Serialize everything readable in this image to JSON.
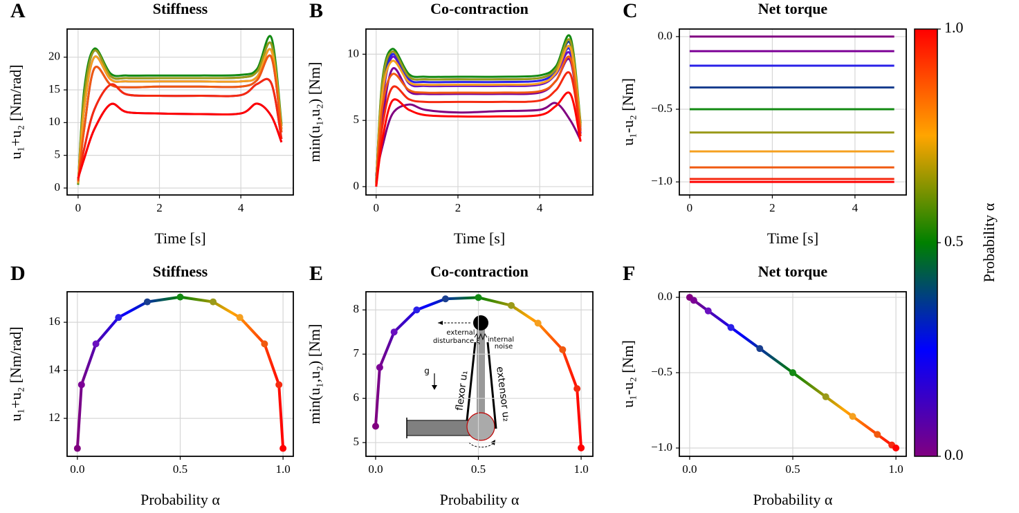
{
  "chart_data": [
    {
      "type": "line",
      "panel_label": "A",
      "title": "Stiffness",
      "xlabel": "Time [s]",
      "ylabel": "u₁+u₂ [Nm/rad]",
      "xlim": [
        -0.27,
        5.29
      ],
      "ylim": [
        -1.06,
        24.3
      ],
      "xticks": [
        0,
        2,
        4
      ],
      "yticks": [
        0,
        5,
        10,
        15,
        20
      ],
      "grid": true,
      "smooth": true,
      "x": [
        0,
        0.15,
        0.4,
        0.8,
        1.2,
        2,
        3,
        4,
        4.4,
        4.75,
        5
      ],
      "series": [
        {
          "color": "#800080",
          "values": [
            1.5,
            4.5,
            9,
            12.8,
            11.6,
            11.4,
            11.3,
            11.4,
            12.9,
            11,
            7
          ]
        },
        {
          "color": "#7c0096",
          "values": [
            1.2,
            6,
            12,
            15.8,
            14.3,
            14.1,
            14.1,
            14.2,
            15.9,
            16,
            7.5
          ]
        },
        {
          "color": "#6a10c0",
          "values": [
            1,
            9,
            18.3,
            15.8,
            15.4,
            15.5,
            15.5,
            15.5,
            16.5,
            20,
            8.5
          ]
        },
        {
          "color": "#2a20e8",
          "values": [
            0.8,
            12,
            20,
            16.6,
            16.3,
            16.3,
            16.3,
            16.3,
            17,
            21,
            9
          ]
        },
        {
          "color": "#1a3f8f",
          "values": [
            0.6,
            14,
            21,
            17.1,
            16.8,
            16.8,
            16.8,
            16.9,
            17.8,
            22,
            9.5
          ]
        },
        {
          "color": "#138a13",
          "values": [
            0.5,
            15,
            21.3,
            17.5,
            17.2,
            17.2,
            17.2,
            17.3,
            18.2,
            23,
            9.8
          ]
        },
        {
          "color": "#9a9a1a",
          "values": [
            0.6,
            14,
            21,
            17.1,
            16.8,
            16.8,
            16.8,
            16.9,
            17.8,
            22,
            9.5
          ]
        },
        {
          "color": "#f5a020",
          "values": [
            0.8,
            12,
            20,
            16.6,
            16.3,
            16.3,
            16.3,
            16.3,
            17,
            21,
            9
          ]
        },
        {
          "color": "#f05a10",
          "values": [
            1,
            9,
            18.3,
            15.8,
            15.4,
            15.5,
            15.5,
            15.5,
            16.5,
            20,
            8.5
          ]
        },
        {
          "color": "#f52a10",
          "values": [
            1.2,
            6,
            12,
            15.8,
            14.3,
            14.1,
            14.1,
            14.2,
            15.9,
            16,
            7.5
          ]
        },
        {
          "color": "#ff0000",
          "values": [
            1.5,
            4.5,
            9,
            12.8,
            11.6,
            11.4,
            11.3,
            11.4,
            12.9,
            11,
            7
          ]
        }
      ]
    },
    {
      "type": "line",
      "panel_label": "B",
      "title": "Co-contraction",
      "xlabel": "Time [s]",
      "ylabel": "min(u₁,u₂) [Nm]",
      "xlim": [
        -0.25,
        5.3
      ],
      "ylim": [
        -0.63,
        11.9
      ],
      "xticks": [
        0,
        2,
        4
      ],
      "yticks": [
        0,
        5,
        10
      ],
      "grid": true,
      "smooth": true,
      "x": [
        0,
        0.15,
        0.4,
        0.8,
        1.2,
        2,
        3,
        4,
        4.4,
        4.75,
        5
      ],
      "series": [
        {
          "color": "#800080",
          "values": [
            0.9,
            3,
            5.5,
            6.2,
            5.8,
            5.6,
            5.7,
            5.8,
            6.3,
            5,
            3.5
          ]
        },
        {
          "color": "#7c0096",
          "values": [
            0.8,
            5,
            8.9,
            7.2,
            7,
            7,
            7,
            7.1,
            8,
            9.5,
            4
          ]
        },
        {
          "color": "#6a10c0",
          "values": [
            0.6,
            6.5,
            9.8,
            7.8,
            7.6,
            7.6,
            7.6,
            7.7,
            8.5,
            10,
            4.3
          ]
        },
        {
          "color": "#2a20e8",
          "values": [
            0.5,
            7,
            10,
            8.1,
            7.9,
            7.9,
            7.9,
            8,
            8.7,
            10.3,
            4.5
          ]
        },
        {
          "color": "#1a3f8f",
          "values": [
            0.4,
            7.5,
            10.2,
            8.3,
            8.1,
            8.1,
            8.1,
            8.2,
            8.9,
            10.8,
            4.6
          ]
        },
        {
          "color": "#138a13",
          "values": [
            0.3,
            8,
            10.4,
            8.5,
            8.3,
            8.3,
            8.3,
            8.4,
            9.1,
            11.3,
            4.8
          ]
        },
        {
          "color": "#9a9a1a",
          "values": [
            0.3,
            7.8,
            10.2,
            8.3,
            8.1,
            8.1,
            8.1,
            8.2,
            8.9,
            11,
            4.7
          ]
        },
        {
          "color": "#f5a020",
          "values": [
            0.2,
            7,
            9.5,
            7.9,
            7.7,
            7.7,
            7.7,
            7.8,
            8.6,
            10.5,
            4.5
          ]
        },
        {
          "color": "#f05a10",
          "values": [
            0.1,
            6,
            8.5,
            7.3,
            7.1,
            7.1,
            7.1,
            7.2,
            8,
            9.7,
            4.2
          ]
        },
        {
          "color": "#f52a10",
          "values": [
            0,
            4.5,
            7.5,
            6.6,
            6.4,
            6.4,
            6.4,
            6.5,
            7.3,
            8.5,
            3.8
          ]
        },
        {
          "color": "#ff0000",
          "values": [
            0,
            3.5,
            6.5,
            5.8,
            5.4,
            5.3,
            5.3,
            5.4,
            6.1,
            7,
            3.4
          ]
        }
      ]
    },
    {
      "type": "line",
      "panel_label": "C",
      "title": "Net torque",
      "xlabel": "Time [s]",
      "ylabel": "u₁-u₂ [Nm]",
      "xlim": [
        -0.25,
        5.24
      ],
      "ylim": [
        -1.09,
        0.052
      ],
      "xticks": [
        0,
        2,
        4
      ],
      "yticks": [
        {
          "value": 0,
          "label": "0.0"
        },
        {
          "value": -0.5,
          "label": "−0.5"
        },
        {
          "value": -1,
          "label": "−1.0"
        }
      ],
      "grid": true,
      "smooth": false,
      "x": [
        0,
        4.95
      ],
      "series": [
        {
          "color": "#800080",
          "values": [
            0,
            0
          ]
        },
        {
          "color": "#7c0096",
          "values": [
            -0.1,
            -0.1
          ]
        },
        {
          "color": "#2a20e8",
          "values": [
            -0.2,
            -0.2
          ]
        },
        {
          "color": "#1a3f8f",
          "values": [
            -0.35,
            -0.35
          ]
        },
        {
          "color": "#138a13",
          "values": [
            -0.5,
            -0.5
          ]
        },
        {
          "color": "#9a9a1a",
          "values": [
            -0.66,
            -0.66
          ]
        },
        {
          "color": "#f5a020",
          "values": [
            -0.79,
            -0.79
          ]
        },
        {
          "color": "#f05a10",
          "values": [
            -0.9,
            -0.9
          ]
        },
        {
          "color": "#f52a10",
          "values": [
            -0.98,
            -0.98
          ]
        },
        {
          "color": "#ff0000",
          "values": [
            -1.0,
            -1.0
          ]
        }
      ]
    },
    {
      "type": "gradient-line",
      "panel_label": "D",
      "title": "Stiffness",
      "xlabel": "Probability α",
      "ylabel": "u₁+u₂ [Nm/rad]",
      "xlim": [
        -0.05,
        1.05
      ],
      "ylim": [
        10.42,
        17.27
      ],
      "xticks": [
        {
          "value": 0,
          "label": "0.0"
        },
        0.5,
        {
          "value": 1,
          "label": "1.0"
        }
      ],
      "yticks": [
        12,
        14,
        16
      ],
      "grid": true,
      "x": [
        0,
        0.02,
        0.09,
        0.2,
        0.34,
        0.5,
        0.66,
        0.79,
        0.91,
        0.98,
        1.0
      ],
      "values": [
        10.75,
        13.4,
        15.1,
        16.2,
        16.85,
        17.05,
        16.85,
        16.2,
        15.1,
        13.4,
        10.75
      ],
      "point_colors": [
        "#800080",
        "#7c0096",
        "#6a10c0",
        "#2a20e8",
        "#1a3f8f",
        "#138a13",
        "#9a9a1a",
        "#f5a020",
        "#f05a10",
        "#f52a10",
        "#ff0000"
      ]
    },
    {
      "type": "gradient-line",
      "panel_label": "E",
      "title": "Co-contraction",
      "xlabel": "Probability α",
      "ylabel": "min(u₁,u₂) [Nm]",
      "xlim": [
        -0.047,
        1.057
      ],
      "ylim": [
        4.69,
        8.41
      ],
      "xticks": [
        {
          "value": 0,
          "label": "0.0"
        },
        0.5,
        {
          "value": 1,
          "label": "1.0"
        }
      ],
      "yticks": [
        5,
        6,
        7,
        8
      ],
      "grid": true,
      "x": [
        0,
        0.02,
        0.09,
        0.2,
        0.34,
        0.5,
        0.66,
        0.79,
        0.91,
        0.98,
        1.0
      ],
      "values": [
        5.37,
        6.7,
        7.5,
        8.0,
        8.25,
        8.28,
        8.1,
        7.7,
        7.1,
        6.22,
        4.88
      ],
      "point_colors": [
        "#800080",
        "#7c0096",
        "#6a10c0",
        "#2a20e8",
        "#1a3f8f",
        "#138a13",
        "#9a9a1a",
        "#f5a020",
        "#f05a10",
        "#f52a10",
        "#ff0000"
      ],
      "annotations": [
        "external",
        "disturbance ξ",
        "internal",
        "noise",
        "g",
        "flexor u₁",
        "extensor u₂"
      ]
    },
    {
      "type": "gradient-line",
      "panel_label": "F",
      "title": "Net torque",
      "xlabel": "Probability α",
      "ylabel": "u₁-u₂ [Nm]",
      "xlim": [
        -0.05,
        1.05
      ],
      "ylim": [
        -1.055,
        0.037
      ],
      "xticks": [
        {
          "value": 0,
          "label": "0.0"
        },
        0.5,
        {
          "value": 1,
          "label": "1.0"
        }
      ],
      "yticks": [
        {
          "value": 0,
          "label": "0.0"
        },
        {
          "value": -0.5,
          "label": "−0.5"
        },
        {
          "value": -1,
          "label": "−1.0"
        }
      ],
      "grid": true,
      "x": [
        0,
        0.02,
        0.09,
        0.2,
        0.34,
        0.5,
        0.66,
        0.79,
        0.91,
        0.98,
        1.0
      ],
      "values": [
        0,
        -0.02,
        -0.09,
        -0.2,
        -0.34,
        -0.5,
        -0.66,
        -0.79,
        -0.91,
        -0.98,
        -1.0
      ],
      "point_colors": [
        "#800080",
        "#7c0096",
        "#6a10c0",
        "#2a20e8",
        "#1a3f8f",
        "#138a13",
        "#9a9a1a",
        "#f5a020",
        "#f05a10",
        "#f52a10",
        "#ff0000"
      ]
    },
    {
      "type": "colorbar",
      "label": "Probability α",
      "lim": [
        0,
        1
      ],
      "ticks": [
        {
          "value": 0,
          "label": "0.0"
        },
        {
          "value": 0.5,
          "label": "0.5"
        },
        {
          "value": 1,
          "label": "1.0"
        }
      ],
      "colors": [
        "#800080",
        "#0000ff",
        "#008000",
        "#ffa500",
        "#ff0000"
      ]
    }
  ]
}
